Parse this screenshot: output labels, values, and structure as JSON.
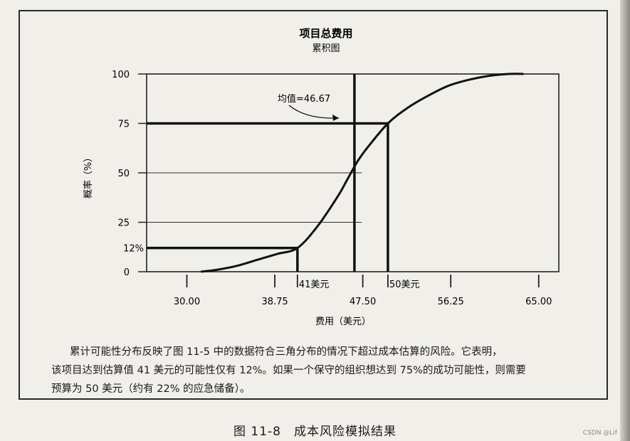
{
  "chart_data": {
    "type": "line",
    "title": "项目总费用",
    "subtitle": "累积图",
    "xlabel": "费用（美元）",
    "ylabel": "概率（%）",
    "xlim": [
      26.0,
      67.0
    ],
    "ylim": [
      0,
      100
    ],
    "x_ticks": [
      "30.00",
      "38.75",
      "47.50",
      "56.25",
      "65.00"
    ],
    "y_ticks": [
      "0",
      "25",
      "50",
      "75",
      "100"
    ],
    "grid": false,
    "series": [
      {
        "x": [
          31.4,
          33.0,
          35.0,
          37.0,
          39.0,
          41.0,
          43.0,
          45.0,
          46.0,
          47.0,
          48.0,
          50.0,
          52.0,
          54.0,
          56.0,
          58.0,
          60.0,
          62.0,
          63.5
        ],
        "y": [
          0,
          1,
          3,
          6,
          9,
          12,
          23,
          38,
          47,
          56,
          63,
          75,
          83,
          89,
          94,
          97,
          99,
          100,
          100
        ]
      }
    ],
    "reference_lines": [
      {
        "label": "12%",
        "y": 12,
        "x": 41
      },
      {
        "label": "",
        "y": 25
      },
      {
        "label": "",
        "y": 50
      },
      {
        "label": "",
        "y": 75,
        "x": 50
      },
      {
        "label": "41美元",
        "x": 41
      },
      {
        "label": "50美元",
        "x": 50
      },
      {
        "label": "",
        "x": 46.67
      }
    ],
    "annotations": [
      {
        "text": "均值=46.67",
        "x": 46.67
      }
    ]
  },
  "description": {
    "line1": "累计可能性分布反映了图 11-5 中的数据符合三角分布的情况下超过成本估算的风险。它表明，",
    "line2": "该项目达到估算值 41 美元的可能性仅有 12%。如果一个保守的组织想达到 75%的成功可能性，则需要",
    "line3": "预算为 50 美元（约有 22% 的应急储备）。"
  },
  "caption": {
    "figure_number": "图 11-8",
    "figure_title": "成本风险模拟结果"
  },
  "watermark": "CSDN @Lif"
}
